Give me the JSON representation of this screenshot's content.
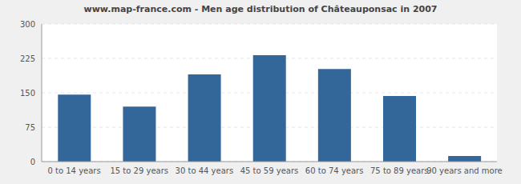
{
  "chart_data": {
    "type": "bar",
    "title": "www.map-france.com - Men age distribution of Châteauponsac in 2007",
    "categories": [
      "0 to 14 years",
      "15 to 29 years",
      "30 to 44 years",
      "45 to 59 years",
      "60 to 74 years",
      "75 to 89 years",
      "90 years and more"
    ],
    "values": [
      146,
      120,
      190,
      232,
      202,
      143,
      12
    ],
    "color": "#336699",
    "ylim": [
      0,
      300
    ],
    "yticks": [
      0,
      75,
      150,
      225,
      300
    ],
    "grid": true
  }
}
